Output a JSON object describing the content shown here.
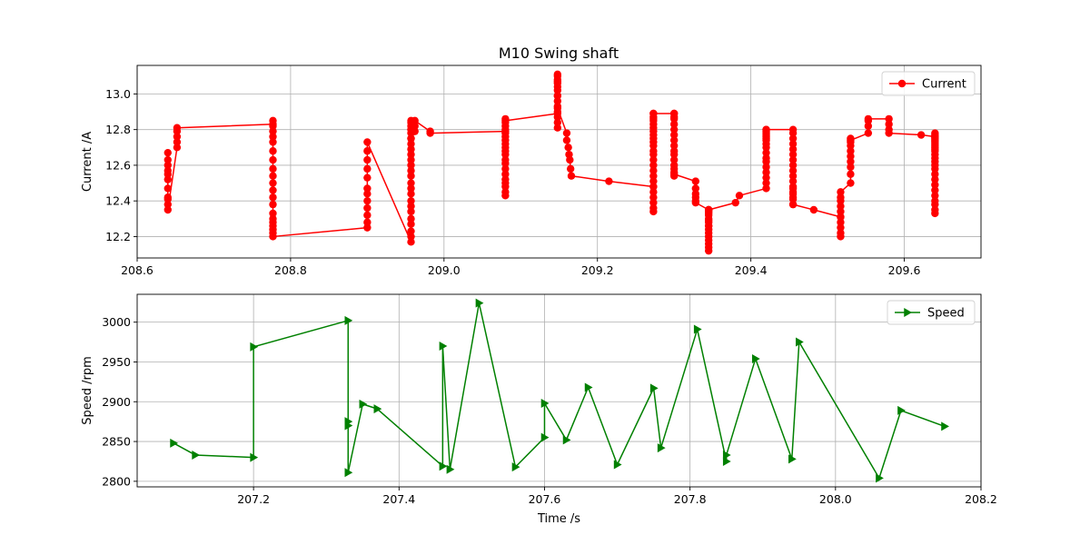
{
  "figure": {
    "title": "M10 Swing shaft"
  },
  "chart_data": [
    {
      "type": "line",
      "title": "M10 Swing shaft",
      "xlabel": "",
      "ylabel": "Current /A",
      "xlim": [
        208.6,
        209.7
      ],
      "ylim": [
        12.08,
        13.16
      ],
      "xticks": [
        208.6,
        208.8,
        209.0,
        209.2,
        209.4,
        209.6
      ],
      "xtick_labels": [
        "208.6",
        "208.8",
        "209.0",
        "209.2",
        "209.4",
        "209.6"
      ],
      "yticks": [
        12.2,
        12.4,
        12.6,
        12.8,
        13.0
      ],
      "ytick_labels": [
        "12.2",
        "12.4",
        "12.6",
        "12.8",
        "13.0"
      ],
      "grid": true,
      "legend_position": "top-right",
      "series": [
        {
          "name": "Current",
          "color": "#ff0000",
          "marker": "circle",
          "x": [
            208.64,
            208.64,
            208.64,
            208.64,
            208.64,
            208.64,
            208.64,
            208.64,
            208.64,
            208.64,
            208.64,
            208.652,
            208.652,
            208.652,
            208.652,
            208.652,
            208.777,
            208.777,
            208.777,
            208.777,
            208.777,
            208.777,
            208.777,
            208.777,
            208.777,
            208.777,
            208.777,
            208.777,
            208.777,
            208.777,
            208.777,
            208.777,
            208.777,
            208.777,
            208.777,
            208.777,
            208.777,
            208.9,
            208.9,
            208.9,
            208.9,
            208.9,
            208.9,
            208.9,
            208.9,
            208.9,
            208.9,
            208.9,
            208.9,
            208.957,
            208.957,
            208.957,
            208.957,
            208.957,
            208.957,
            208.957,
            208.957,
            208.957,
            208.957,
            208.957,
            208.957,
            208.957,
            208.957,
            208.957,
            208.957,
            208.957,
            208.957,
            208.957,
            208.957,
            208.957,
            208.957,
            208.957,
            208.957,
            208.957,
            208.957,
            208.962,
            208.962,
            208.962,
            208.982,
            208.982,
            209.08,
            209.08,
            209.08,
            209.08,
            209.08,
            209.08,
            209.08,
            209.08,
            209.08,
            209.08,
            209.08,
            209.08,
            209.08,
            209.08,
            209.08,
            209.08,
            209.08,
            209.08,
            209.08,
            209.08,
            209.08,
            209.08,
            209.148,
            209.148,
            209.148,
            209.148,
            209.148,
            209.148,
            209.148,
            209.148,
            209.148,
            209.148,
            209.148,
            209.148,
            209.148,
            209.148,
            209.148,
            209.148,
            209.148,
            209.16,
            209.16,
            209.162,
            209.163,
            209.164,
            209.165,
            209.166,
            209.215,
            209.273,
            209.273,
            209.273,
            209.273,
            209.273,
            209.273,
            209.273,
            209.273,
            209.273,
            209.273,
            209.273,
            209.273,
            209.273,
            209.273,
            209.273,
            209.273,
            209.273,
            209.273,
            209.273,
            209.273,
            209.273,
            209.273,
            209.273,
            209.273,
            209.273,
            209.273,
            209.3,
            209.3,
            209.3,
            209.3,
            209.3,
            209.3,
            209.3,
            209.3,
            209.3,
            209.3,
            209.3,
            209.3,
            209.3,
            209.3,
            209.3,
            209.3,
            209.3,
            209.328,
            209.328,
            209.328,
            209.328,
            209.328,
            209.328,
            209.345,
            209.345,
            209.345,
            209.345,
            209.345,
            209.345,
            209.345,
            209.345,
            209.345,
            209.345,
            209.345,
            209.345,
            209.345,
            209.345,
            209.345,
            209.345,
            209.345,
            209.345,
            209.38,
            209.385,
            209.42,
            209.42,
            209.42,
            209.42,
            209.42,
            209.42,
            209.42,
            209.42,
            209.42,
            209.42,
            209.42,
            209.42,
            209.42,
            209.42,
            209.42,
            209.42,
            209.42,
            209.42,
            209.455,
            209.455,
            209.455,
            209.455,
            209.455,
            209.455,
            209.455,
            209.455,
            209.455,
            209.455,
            209.455,
            209.455,
            209.455,
            209.455,
            209.455,
            209.455,
            209.455,
            209.455,
            209.455,
            209.482,
            209.517,
            209.517,
            209.517,
            209.517,
            209.517,
            209.517,
            209.517,
            209.517,
            209.517,
            209.517,
            209.517,
            209.53,
            209.53,
            209.53,
            209.53,
            209.53,
            209.53,
            209.53,
            209.53,
            209.53,
            209.53,
            209.553,
            209.553,
            209.553,
            209.553,
            209.58,
            209.58,
            209.58,
            209.58,
            209.622,
            209.64,
            209.64,
            209.64,
            209.64,
            209.64,
            209.64,
            209.64,
            209.64,
            209.64,
            209.64,
            209.64,
            209.64,
            209.64,
            209.64,
            209.64,
            209.64,
            209.64,
            209.64,
            209.64,
            209.64,
            209.64,
            209.64,
            209.64,
            209.64,
            209.64,
            209.64
          ],
          "y": [
            12.67,
            12.63,
            12.6,
            12.57,
            12.55,
            12.52,
            12.47,
            12.42,
            12.41,
            12.38,
            12.35,
            12.7,
            12.73,
            12.76,
            12.79,
            12.81,
            12.83,
            12.85,
            12.82,
            12.79,
            12.76,
            12.73,
            12.68,
            12.63,
            12.58,
            12.54,
            12.5,
            12.46,
            12.42,
            12.38,
            12.33,
            12.3,
            12.28,
            12.26,
            12.24,
            12.22,
            12.2,
            12.25,
            12.28,
            12.32,
            12.36,
            12.4,
            12.44,
            12.47,
            12.53,
            12.58,
            12.63,
            12.68,
            12.73,
            12.17,
            12.2,
            12.23,
            12.27,
            12.3,
            12.34,
            12.37,
            12.4,
            12.44,
            12.47,
            12.5,
            12.54,
            12.57,
            12.6,
            12.63,
            12.66,
            12.69,
            12.72,
            12.75,
            12.78,
            12.8,
            12.82,
            12.84,
            12.85,
            12.8,
            12.75,
            12.79,
            12.82,
            12.85,
            12.79,
            12.78,
            12.79,
            12.43,
            12.45,
            12.48,
            12.5,
            12.52,
            12.55,
            12.58,
            12.61,
            12.63,
            12.66,
            12.68,
            12.7,
            12.72,
            12.74,
            12.76,
            12.78,
            12.8,
            12.82,
            12.84,
            12.86,
            12.85,
            12.89,
            12.81,
            12.84,
            12.87,
            12.9,
            12.93,
            12.96,
            12.99,
            13.02,
            13.04,
            13.06,
            13.08,
            13.1,
            13.11,
            13.07,
            12.99,
            12.92,
            12.78,
            12.74,
            12.7,
            12.66,
            12.63,
            12.58,
            12.54,
            12.51,
            12.48,
            12.34,
            12.36,
            12.39,
            12.42,
            12.45,
            12.48,
            12.51,
            12.54,
            12.57,
            12.6,
            12.63,
            12.66,
            12.68,
            12.71,
            12.73,
            12.75,
            12.77,
            12.79,
            12.81,
            12.83,
            12.85,
            12.87,
            12.89,
            12.86,
            12.89,
            12.89,
            12.86,
            12.83,
            12.8,
            12.77,
            12.74,
            12.71,
            12.68,
            12.66,
            12.63,
            12.6,
            12.58,
            12.56,
            12.54,
            12.87,
            12.89,
            12.55,
            12.51,
            12.47,
            12.44,
            12.42,
            12.4,
            12.39,
            12.35,
            12.12,
            12.14,
            12.16,
            12.18,
            12.2,
            12.22,
            12.24,
            12.26,
            12.28,
            12.3,
            12.32,
            12.34,
            12.35,
            12.33,
            12.29,
            12.26,
            12.35,
            12.39,
            12.43,
            12.47,
            12.5,
            12.53,
            12.56,
            12.59,
            12.62,
            12.64,
            12.67,
            12.7,
            12.72,
            12.74,
            12.76,
            12.78,
            12.8,
            12.79,
            12.77,
            12.75,
            12.8,
            12.8,
            12.78,
            12.75,
            12.72,
            12.69,
            12.66,
            12.63,
            12.6,
            12.57,
            12.54,
            12.51,
            12.48,
            12.45,
            12.42,
            12.38,
            12.41,
            12.44,
            12.47,
            12.38,
            12.35,
            12.31,
            12.2,
            12.22,
            12.25,
            12.28,
            12.31,
            12.34,
            12.37,
            12.4,
            12.42,
            12.45,
            12.5,
            12.55,
            12.59,
            12.62,
            12.65,
            12.68,
            12.71,
            12.73,
            12.75,
            12.74,
            12.78,
            12.82,
            12.85,
            12.86,
            12.86,
            12.83,
            12.8,
            12.78,
            12.77,
            12.76,
            12.33,
            12.35,
            12.38,
            12.4,
            12.43,
            12.46,
            12.49,
            12.52,
            12.55,
            12.58,
            12.6,
            12.62,
            12.64,
            12.66,
            12.68,
            12.7,
            12.72,
            12.74,
            12.76,
            12.78,
            12.77,
            12.75,
            12.73,
            12.71,
            12.69
          ]
        }
      ]
    },
    {
      "type": "line",
      "title": "",
      "xlabel": "Time /s",
      "ylabel": "Speed /rpm",
      "xlim": [
        207.04,
        208.2
      ],
      "ylim": [
        2793,
        3035
      ],
      "xticks": [
        207.2,
        207.4,
        207.6,
        207.8,
        208.0,
        208.2
      ],
      "xtick_labels": [
        "207.2",
        "207.4",
        "207.6",
        "207.8",
        "208.0",
        "208.2"
      ],
      "yticks": [
        2800,
        2850,
        2900,
        2950,
        3000
      ],
      "ytick_labels": [
        "2800",
        "2850",
        "2900",
        "2950",
        "3000"
      ],
      "grid": true,
      "legend_position": "top-right",
      "series": [
        {
          "name": "Speed",
          "color": "#008000",
          "marker": "triangle-right",
          "x": [
            207.09,
            207.12,
            207.2,
            207.2,
            207.33,
            207.33,
            207.33,
            207.33,
            207.35,
            207.37,
            207.46,
            207.46,
            207.47,
            207.51,
            207.56,
            207.6,
            207.6,
            207.63,
            207.66,
            207.7,
            207.75,
            207.76,
            207.81,
            207.85,
            207.85,
            207.89,
            207.94,
            207.95,
            208.06,
            208.09,
            208.15
          ],
          "y": [
            2848,
            2833,
            2830,
            2969,
            3002,
            2875,
            2870,
            2811,
            2897,
            2891,
            2819,
            2970,
            2815,
            3024,
            2818,
            2855,
            2898,
            2852,
            2918,
            2821,
            2917,
            2842,
            2991,
            2825,
            2833,
            2954,
            2828,
            2975,
            2804,
            2889,
            2869
          ]
        }
      ]
    }
  ]
}
